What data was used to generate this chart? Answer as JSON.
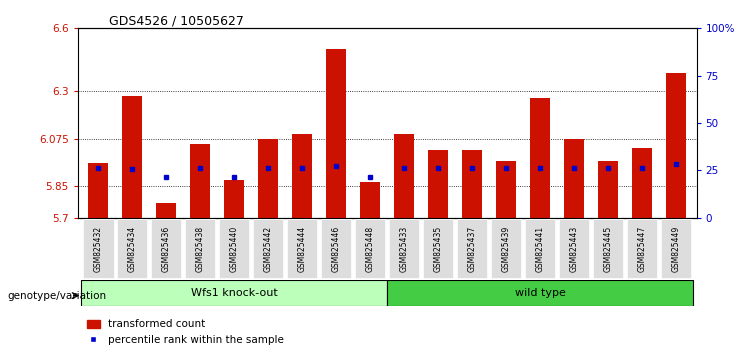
{
  "title": "GDS4526 / 10505627",
  "samples": [
    "GSM825432",
    "GSM825434",
    "GSM825436",
    "GSM825438",
    "GSM825440",
    "GSM825442",
    "GSM825444",
    "GSM825446",
    "GSM825448",
    "GSM825433",
    "GSM825435",
    "GSM825437",
    "GSM825439",
    "GSM825441",
    "GSM825443",
    "GSM825445",
    "GSM825447",
    "GSM825449"
  ],
  "red_values": [
    5.96,
    6.28,
    5.77,
    6.05,
    5.88,
    6.075,
    6.1,
    6.5,
    5.87,
    6.1,
    6.02,
    6.02,
    5.97,
    6.27,
    6.075,
    5.97,
    6.03,
    6.39
  ],
  "blue_values": [
    5.935,
    5.93,
    5.895,
    5.935,
    5.895,
    5.935,
    5.935,
    5.945,
    5.895,
    5.935,
    5.935,
    5.935,
    5.935,
    5.935,
    5.935,
    5.935,
    5.935,
    5.955
  ],
  "ymin": 5.7,
  "ymax": 6.6,
  "yticks": [
    5.7,
    5.85,
    6.075,
    6.3,
    6.6
  ],
  "ytick_labels": [
    "5.7",
    "5.85",
    "6.075",
    "6.3",
    "6.6"
  ],
  "y2ticks": [
    0,
    25,
    50,
    75,
    100
  ],
  "y2tick_labels": [
    "0",
    "25",
    "50",
    "75",
    "100%"
  ],
  "bar_color": "#CC1100",
  "blue_color": "#0000CC",
  "bg_color": "#FFFFFF",
  "tick_color_left": "#CC1100",
  "tick_color_right": "#0000CC",
  "legend_red_label": "transformed count",
  "legend_blue_label": "percentile rank within the sample",
  "genotype_label": "genotype/variation",
  "group1_label": "Wfs1 knock-out",
  "group2_label": "wild type",
  "group1_color": "#BBFFBB",
  "group2_color": "#44CC44",
  "xticklabel_bg": "#DDDDDD"
}
